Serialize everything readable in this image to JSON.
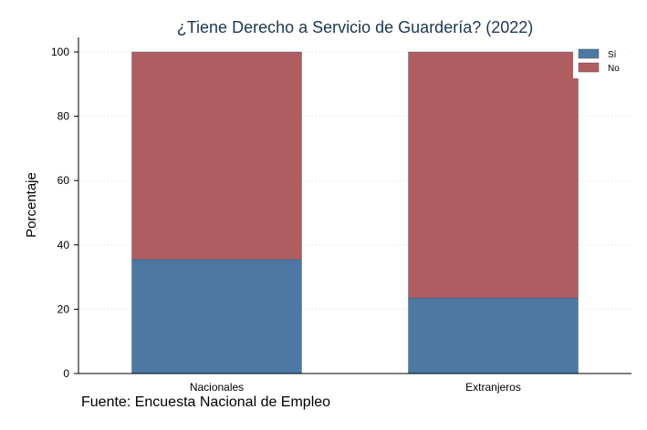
{
  "chart_data": {
    "type": "bar",
    "stacked": true,
    "title": "¿Tiene Derecho a Servicio de Guardería? (2022)",
    "xlabel": "",
    "ylabel": "Porcentaje",
    "categories": [
      "Nacionales",
      "Extranjeros"
    ],
    "series": [
      {
        "name": "Sí",
        "values": [
          35.5,
          23.5
        ],
        "color": "#4c78a3"
      },
      {
        "name": "No",
        "values": [
          64.5,
          76.5
        ],
        "color": "#b05d62"
      }
    ],
    "ylim": [
      0,
      100
    ],
    "yticks": [
      0,
      20,
      40,
      60,
      80,
      100
    ],
    "grid": true,
    "legend_position": "top-right"
  },
  "note": "Fuente: Encuesta Nacional de Empleo"
}
